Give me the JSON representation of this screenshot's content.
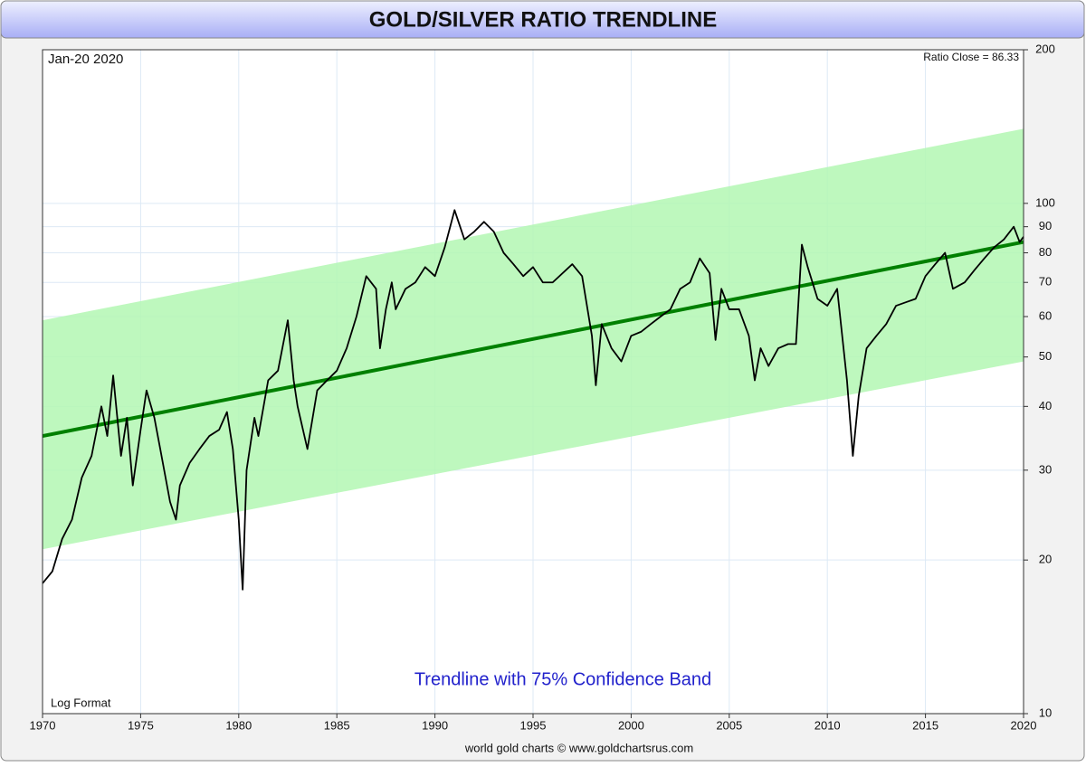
{
  "chart_data": {
    "type": "line",
    "title": "GOLD/SILVER RATIO TRENDLINE",
    "date_label": "Jan-20  2020",
    "last_value_label": "Ratio Close = 86.33",
    "annotation": "Trendline with 75% Confidence Band",
    "scale_label": "Log Format",
    "footer": "world gold charts © www.goldchartsrus.com",
    "log_scale": true,
    "grid": true,
    "xlim": [
      1970,
      2020
    ],
    "xticks": [
      1970,
      1975,
      1980,
      1985,
      1990,
      1995,
      2000,
      2005,
      2010,
      2015,
      2020
    ],
    "ylim": [
      10,
      200
    ],
    "yticks": [
      10,
      20,
      30,
      40,
      50,
      60,
      70,
      80,
      90,
      100,
      200
    ],
    "x": [
      1970.0,
      1970.5,
      1971.0,
      1971.5,
      1972.0,
      1972.5,
      1973.0,
      1973.3,
      1973.6,
      1974.0,
      1974.3,
      1974.6,
      1975.0,
      1975.3,
      1975.7,
      1976.0,
      1976.5,
      1976.8,
      1977.0,
      1977.5,
      1978.0,
      1978.5,
      1979.0,
      1979.4,
      1979.7,
      1980.0,
      1980.2,
      1980.4,
      1980.8,
      1981.0,
      1981.5,
      1982.0,
      1982.5,
      1982.8,
      1983.0,
      1983.5,
      1984.0,
      1984.5,
      1985.0,
      1985.5,
      1986.0,
      1986.5,
      1987.0,
      1987.2,
      1987.5,
      1987.8,
      1988.0,
      1988.5,
      1989.0,
      1989.5,
      1990.0,
      1990.5,
      1991.0,
      1991.5,
      1992.0,
      1992.5,
      1993.0,
      1993.5,
      1994.0,
      1994.5,
      1995.0,
      1995.5,
      1996.0,
      1997.0,
      1997.5,
      1998.0,
      1998.2,
      1998.5,
      1999.0,
      1999.5,
      2000.0,
      2000.5,
      2001.0,
      2001.5,
      2002.0,
      2002.5,
      2003.0,
      2003.5,
      2004.0,
      2004.3,
      2004.6,
      2005.0,
      2005.5,
      2006.0,
      2006.3,
      2006.6,
      2007.0,
      2007.5,
      2008.0,
      2008.4,
      2008.7,
      2009.0,
      2009.5,
      2010.0,
      2010.5,
      2011.0,
      2011.3,
      2011.6,
      2012.0,
      2012.5,
      2013.0,
      2013.5,
      2014.0,
      2014.5,
      2015.0,
      2015.5,
      2016.0,
      2016.4,
      2017.0,
      2017.5,
      2018.0,
      2018.5,
      2019.0,
      2019.5,
      2019.8,
      2020.0
    ],
    "ratio": {
      "color": "#000000",
      "values": [
        18,
        19,
        22,
        24,
        29,
        32,
        40,
        35,
        46,
        32,
        38,
        28,
        36,
        43,
        38,
        33,
        26,
        24,
        28,
        31,
        33,
        35,
        36,
        39,
        33,
        24,
        17.5,
        30,
        38,
        35,
        45,
        47,
        59,
        45,
        40,
        33,
        43,
        45,
        47,
        52,
        60,
        72,
        68,
        52,
        62,
        70,
        62,
        68,
        70,
        75,
        72,
        82,
        97,
        85,
        88,
        92,
        88,
        80,
        76,
        72,
        75,
        70,
        70,
        76,
        72,
        55,
        44,
        58,
        52,
        49,
        55,
        56,
        58,
        60,
        62,
        68,
        70,
        78,
        73,
        54,
        68,
        62,
        62,
        55,
        45,
        52,
        48,
        52,
        53,
        53,
        83,
        75,
        65,
        63,
        68,
        45,
        32,
        42,
        52,
        55,
        58,
        63,
        64,
        65,
        72,
        76,
        80,
        68,
        70,
        74,
        78,
        82,
        85,
        90,
        84,
        86
      ]
    },
    "trendline": {
      "color": "#008000",
      "x": [
        1970,
        2020
      ],
      "values": [
        35,
        84
      ]
    },
    "band": {
      "color": "#b3f7b3",
      "x": [
        1970,
        2020
      ],
      "lower": [
        21,
        49
      ],
      "upper": [
        59,
        140
      ]
    }
  }
}
